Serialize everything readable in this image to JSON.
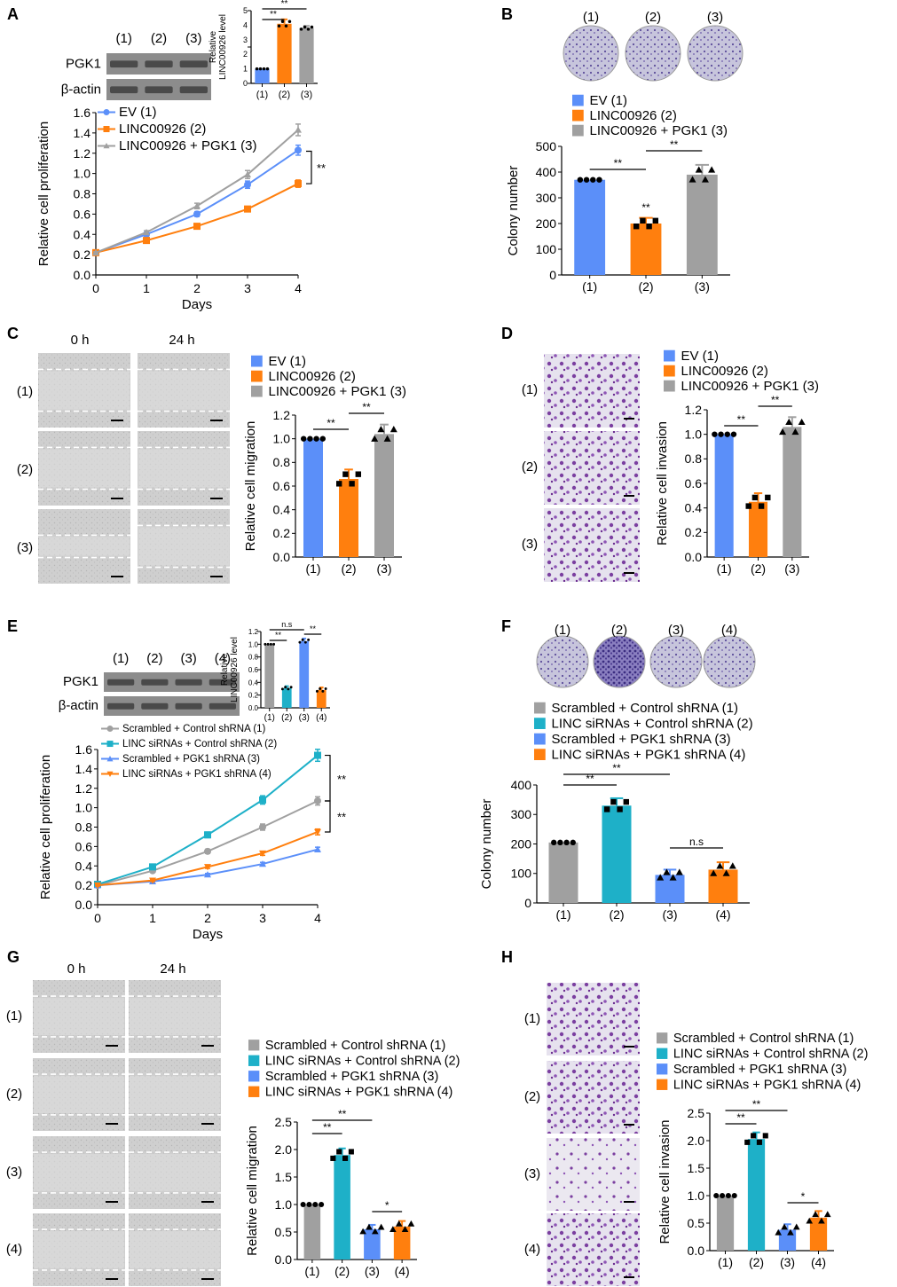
{
  "figure": {
    "panel_letters": [
      "A",
      "B",
      "C",
      "D",
      "E",
      "F",
      "G",
      "H"
    ],
    "colors": {
      "ev": "#5b8ff9",
      "linc": "#ff7f0e",
      "plus": "#a0a0a0",
      "cyan": "#1eb0c8",
      "blue": "#5b8ff9",
      "orange": "#ff7f0e",
      "gray": "#a0a0a0",
      "wb_band": "#4a4a4a",
      "stain": "#7b3fa0",
      "wound_bg": "#cfcfcf"
    }
  },
  "chart_data": [
    {
      "id": "A-line",
      "type": "line",
      "xlabel": "Days",
      "ylabel": "Relative cell proliferation",
      "x": [
        0,
        1,
        2,
        3,
        4
      ],
      "ylim": [
        0,
        1.6
      ],
      "yticks": [
        0,
        0.2,
        0.4,
        0.6,
        0.8,
        1.0,
        1.2,
        1.4,
        1.6
      ],
      "series": [
        {
          "name": "EV (1)",
          "color": "#5b8ff9",
          "marker": "circle",
          "values": [
            0.22,
            0.4,
            0.6,
            0.89,
            1.23
          ]
        },
        {
          "name": "LINC00926 (2)",
          "color": "#ff7f0e",
          "marker": "square",
          "values": [
            0.22,
            0.34,
            0.48,
            0.65,
            0.9
          ]
        },
        {
          "name": "LINC00926 + PGK1 (3)",
          "color": "#a0a0a0",
          "marker": "triangle",
          "values": [
            0.22,
            0.42,
            0.68,
            0.99,
            1.43
          ]
        }
      ],
      "annotation": "**"
    },
    {
      "id": "A-inset",
      "type": "bar",
      "ylabel": "Relative LINC00926 level",
      "categories": [
        "(1)",
        "(2)",
        "(3)"
      ],
      "values": [
        1.0,
        4.1,
        3.8
      ],
      "ylim": [
        0,
        5
      ],
      "colors": [
        "#5b8ff9",
        "#ff7f0e",
        "#a0a0a0"
      ],
      "significance": [
        "**",
        "**"
      ]
    },
    {
      "id": "A-blot",
      "type": "table",
      "lanes": [
        "(1)",
        "(2)",
        "(3)"
      ],
      "rows": [
        "PGK1",
        "β-actin"
      ]
    },
    {
      "id": "B-bar",
      "type": "bar",
      "ylabel": "Colony number",
      "categories": [
        "(1)",
        "(2)",
        "(3)"
      ],
      "values": [
        370,
        200,
        390
      ],
      "ylim": [
        0,
        500
      ],
      "yticks": [
        0,
        100,
        200,
        300,
        400,
        500
      ],
      "colors": [
        "#5b8ff9",
        "#ff7f0e",
        "#a0a0a0"
      ],
      "legend": [
        "EV (1)",
        "LINC00926 (2)",
        "LINC00926 + PGK1 (3)"
      ],
      "plate_labels": [
        "(1)",
        "(2)",
        "(3)"
      ],
      "significance": [
        "**",
        "**",
        "**"
      ]
    },
    {
      "id": "C-bar",
      "type": "bar",
      "ylabel": "Relative cell migration",
      "categories": [
        "(1)",
        "(2)",
        "(3)"
      ],
      "values": [
        1.0,
        0.66,
        1.04
      ],
      "ylim": [
        0,
        1.2
      ],
      "yticks": [
        0,
        0.2,
        0.4,
        0.6,
        0.8,
        1.0,
        1.2
      ],
      "colors": [
        "#5b8ff9",
        "#ff7f0e",
        "#a0a0a0"
      ],
      "legend": [
        "EV (1)",
        "LINC00926 (2)",
        "LINC00926 + PGK1 (3)"
      ],
      "time_labels": [
        "0 h",
        "24 h"
      ],
      "row_labels": [
        "(1)",
        "(2)",
        "(3)"
      ],
      "significance": [
        "**",
        "**"
      ]
    },
    {
      "id": "D-bar",
      "type": "bar",
      "ylabel": "Relative cell invasion",
      "categories": [
        "(1)",
        "(2)",
        "(3)"
      ],
      "values": [
        1.0,
        0.45,
        1.06
      ],
      "ylim": [
        0,
        1.2
      ],
      "yticks": [
        0,
        0.2,
        0.4,
        0.6,
        0.8,
        1.0,
        1.2
      ],
      "colors": [
        "#5b8ff9",
        "#ff7f0e",
        "#a0a0a0"
      ],
      "legend": [
        "EV (1)",
        "LINC00926 (2)",
        "LINC00926 + PGK1 (3)"
      ],
      "row_labels": [
        "(1)",
        "(2)",
        "(3)"
      ],
      "significance": [
        "**",
        "**"
      ]
    },
    {
      "id": "E-line",
      "type": "line",
      "xlabel": "Days",
      "ylabel": "Relative cell proliferation",
      "x": [
        0,
        1,
        2,
        3,
        4
      ],
      "ylim": [
        0,
        1.6
      ],
      "yticks": [
        0,
        0.2,
        0.4,
        0.6,
        0.8,
        1.0,
        1.2,
        1.4,
        1.6
      ],
      "series": [
        {
          "name": "Scrambled + Control shRNA (1)",
          "color": "#a0a0a0",
          "marker": "circle",
          "values": [
            0.2,
            0.35,
            0.55,
            0.8,
            1.07
          ]
        },
        {
          "name": "LINC siRNAs + Control shRNA (2)",
          "color": "#1eb0c8",
          "marker": "square",
          "values": [
            0.21,
            0.39,
            0.72,
            1.08,
            1.54
          ]
        },
        {
          "name": "Scrambled + PGK1 shRNA (3)",
          "color": "#5b8ff9",
          "marker": "triangle",
          "values": [
            0.2,
            0.24,
            0.31,
            0.42,
            0.57
          ]
        },
        {
          "name": "LINC siRNAs + PGK1 shRNA (4)",
          "color": "#ff7f0e",
          "marker": "triangle-down",
          "values": [
            0.2,
            0.25,
            0.39,
            0.53,
            0.75
          ]
        }
      ],
      "annotations": [
        "**",
        "**"
      ]
    },
    {
      "id": "E-inset",
      "type": "bar",
      "ylabel": "Relative LINC00926 level",
      "categories": [
        "(1)",
        "(2)",
        "(3)",
        "(4)"
      ],
      "values": [
        1.0,
        0.31,
        1.05,
        0.28
      ],
      "ylim": [
        0,
        1.2
      ],
      "yticks": [
        0,
        0.2,
        0.4,
        0.6,
        0.8,
        1.0,
        1.2
      ],
      "colors": [
        "#a0a0a0",
        "#1eb0c8",
        "#5b8ff9",
        "#ff7f0e"
      ],
      "significance": [
        "**",
        "n.s",
        "**"
      ]
    },
    {
      "id": "E-blot",
      "type": "table",
      "lanes": [
        "(1)",
        "(2)",
        "(3)",
        "(4)"
      ],
      "rows": [
        "PGK1",
        "β-actin"
      ]
    },
    {
      "id": "F-bar",
      "type": "bar",
      "ylabel": "Colony number",
      "categories": [
        "(1)",
        "(2)",
        "(3)",
        "(4)"
      ],
      "values": [
        205,
        330,
        95,
        113
      ],
      "ylim": [
        0,
        400
      ],
      "yticks": [
        0,
        100,
        200,
        300,
        400
      ],
      "colors": [
        "#a0a0a0",
        "#1eb0c8",
        "#5b8ff9",
        "#ff7f0e"
      ],
      "legend": [
        "Scrambled + Control shRNA (1)",
        "LINC siRNAs + Control shRNA (2)",
        "Scrambled + PGK1 shRNA (3)",
        "LINC siRNAs + PGK1 shRNA (4)"
      ],
      "plate_labels": [
        "(1)",
        "(2)",
        "(3)",
        "(4)"
      ],
      "significance": [
        "**",
        "**",
        "n.s"
      ]
    },
    {
      "id": "G-bar",
      "type": "bar",
      "ylabel": "Relative cell migration",
      "categories": [
        "(1)",
        "(2)",
        "(3)",
        "(4)"
      ],
      "values": [
        1.0,
        1.9,
        0.55,
        0.6
      ],
      "ylim": [
        0,
        2.5
      ],
      "yticks": [
        0,
        0.5,
        1.0,
        1.5,
        2.0,
        2.5
      ],
      "colors": [
        "#a0a0a0",
        "#1eb0c8",
        "#5b8ff9",
        "#ff7f0e"
      ],
      "legend": [
        "Scrambled + Control shRNA (1)",
        "LINC siRNAs + Control shRNA (2)",
        "Scrambled + PGK1 shRNA (3)",
        "LINC siRNAs + PGK1 shRNA (4)"
      ],
      "time_labels": [
        "0 h",
        "24 h"
      ],
      "row_labels": [
        "(1)",
        "(2)",
        "(3)",
        "(4)"
      ],
      "significance": [
        "**",
        "**",
        "*"
      ]
    },
    {
      "id": "H-bar",
      "type": "bar",
      "ylabel": "Relative cell invasion",
      "categories": [
        "(1)",
        "(2)",
        "(3)",
        "(4)"
      ],
      "values": [
        1.0,
        2.03,
        0.38,
        0.6
      ],
      "ylim": [
        0,
        2.5
      ],
      "yticks": [
        0,
        0.5,
        1.0,
        1.5,
        2.0,
        2.5
      ],
      "colors": [
        "#a0a0a0",
        "#1eb0c8",
        "#5b8ff9",
        "#ff7f0e"
      ],
      "legend": [
        "Scrambled + Control shRNA (1)",
        "LINC siRNAs + Control shRNA (2)",
        "Scrambled + PGK1 shRNA (3)",
        "LINC siRNAs + PGK1 shRNA (4)"
      ],
      "row_labels": [
        "(1)",
        "(2)",
        "(3)",
        "(4)"
      ],
      "significance": [
        "**",
        "**",
        "*"
      ]
    }
  ]
}
